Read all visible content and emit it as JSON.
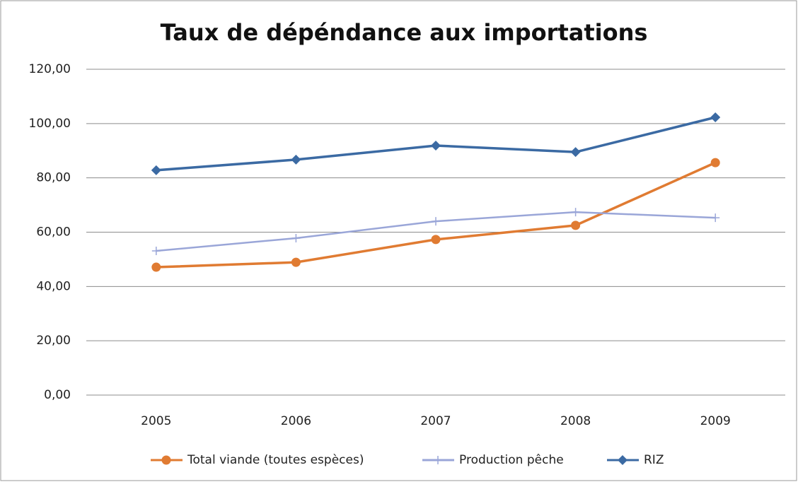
{
  "chart_data": {
    "type": "line",
    "title": "Taux de dépéndance aux importations",
    "categories": [
      "2005",
      "2006",
      "2007",
      "2008",
      "2009"
    ],
    "series": [
      {
        "name": "Total viande (toutes espèces)",
        "color": "#e07b32",
        "marker": "circle",
        "values": [
          47.1,
          48.9,
          57.3,
          62.5,
          85.6
        ]
      },
      {
        "name": "Production pêche",
        "color": "#9aa6d8",
        "marker": "plus",
        "values": [
          53.1,
          57.8,
          64.0,
          67.4,
          65.3
        ]
      },
      {
        "name": "RIZ",
        "color": "#3b6aa3",
        "marker": "diamond",
        "values": [
          82.8,
          86.7,
          91.9,
          89.5,
          102.3
        ]
      }
    ],
    "ylim": [
      0,
      120
    ],
    "yticks": [
      {
        "value": 0,
        "label": "0,00"
      },
      {
        "value": 20,
        "label": "20,00"
      },
      {
        "value": 40,
        "label": "40,00"
      },
      {
        "value": 60,
        "label": "60,00"
      },
      {
        "value": 80,
        "label": "80,00"
      },
      {
        "value": 100,
        "label": "100,00"
      },
      {
        "value": 120,
        "label": "120,00"
      }
    ],
    "grid": true,
    "legend": "bottom"
  }
}
